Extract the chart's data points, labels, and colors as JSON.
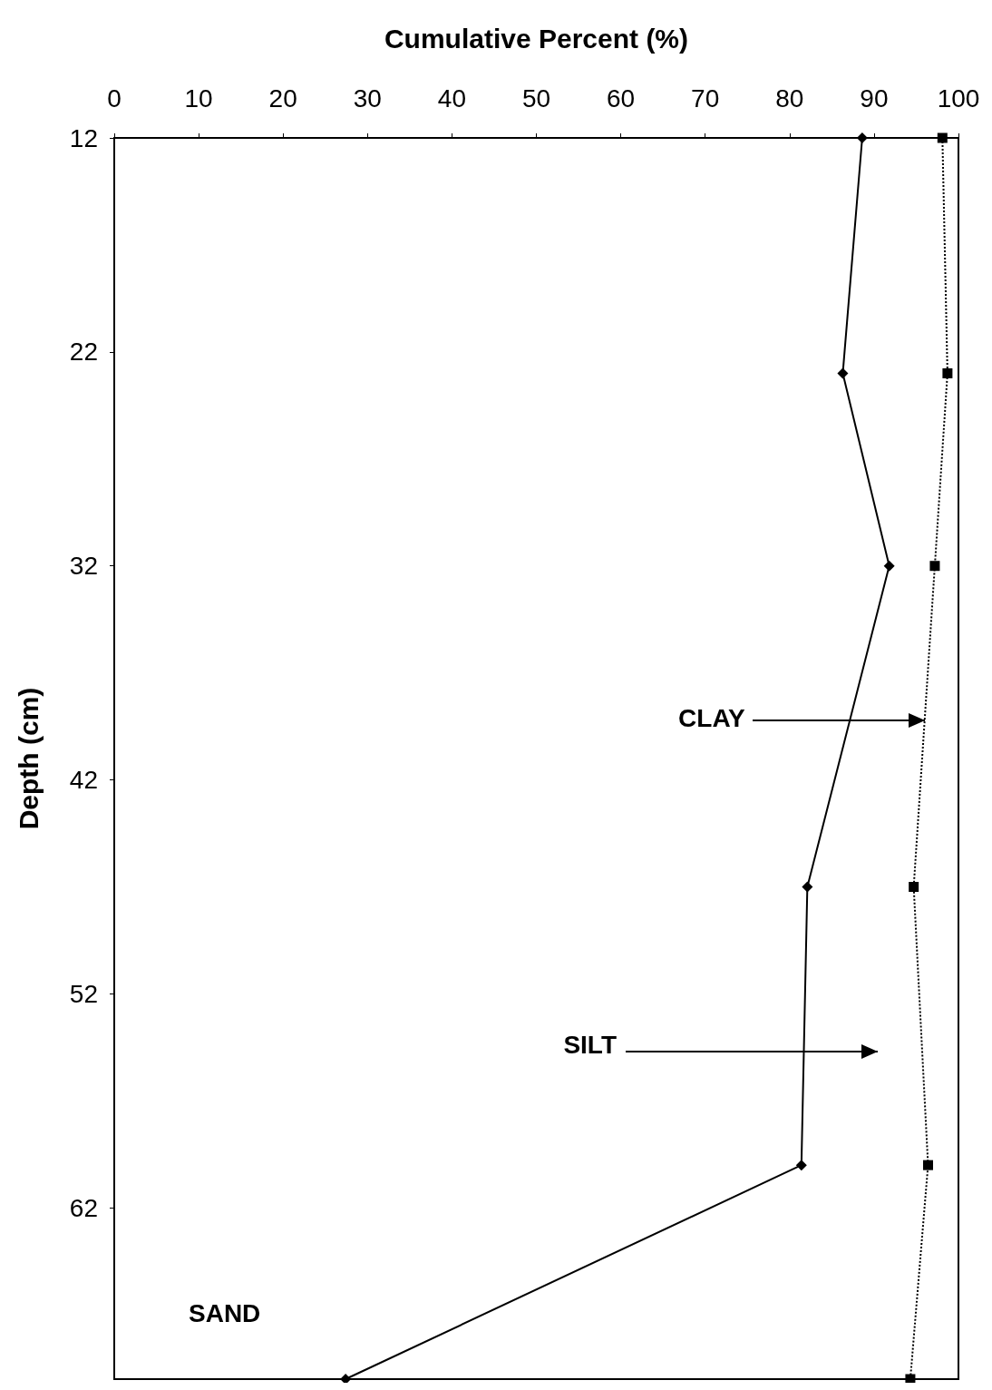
{
  "chart_data": {
    "type": "line",
    "xlabel": "Cumulative Percent (%)",
    "ylabel": "Depth (cm)",
    "xlim": [
      0,
      100
    ],
    "xticks": [
      0,
      10,
      20,
      30,
      40,
      50,
      60,
      70,
      80,
      90,
      100
    ],
    "ylim": [
      70,
      12
    ],
    "yticks": [
      12,
      22,
      32,
      42,
      52,
      62
    ],
    "grid": false,
    "series": [
      {
        "color": "#000000",
        "marker": "diamond",
        "line_style": "solid",
        "x": [
          88.6,
          86.3,
          91.8,
          82.1,
          81.4,
          27.4
        ],
        "values": [
          12,
          23,
          32,
          47,
          60,
          70
        ]
      },
      {
        "color": "#000000",
        "marker": "square",
        "line_style": "dotted",
        "x": [
          98.1,
          98.7,
          97.2,
          94.7,
          96.4,
          94.3
        ],
        "values": [
          12,
          23,
          32,
          47,
          60,
          70
        ]
      }
    ],
    "annotations": [
      {
        "text": "CLAY",
        "x": 96.0,
        "y": 39.2
      },
      "SILT",
      "SAND"
    ]
  }
}
